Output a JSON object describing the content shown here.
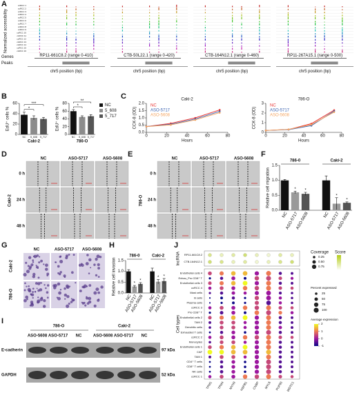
{
  "panel_letters": [
    "A",
    "B",
    "C",
    "D",
    "E",
    "F",
    "G",
    "H",
    "I",
    "J"
  ],
  "panel_a": {
    "ylabel": "Normalized accessibility",
    "tracks": [
      "ccRCC 1",
      "ccRCC 2",
      "ccRCC 3",
      "ccRCC 4",
      "ccRCC 5",
      "ccRCC 6",
      "ccRCC 7",
      "ccRCC 8",
      "ccRCC 9",
      "ccRCC 10",
      "ccRCC 11",
      "ccRCC 12",
      "ccRCC 13",
      "ccRCC 14",
      "ccRCC 15",
      "ccRCC 16"
    ],
    "genes_label": "Genes",
    "peaks_label": "Peaks",
    "genes": [
      "RP11-661C8.2 (range 0-410)",
      "CTB-50L22.1 (range 0-420)",
      "CTB-164N12.1 (range 0-460)",
      "RP11-267A15.1 (range 0-500)"
    ],
    "xlabel": "chr5 position (bp)"
  },
  "chart_data": [
    {
      "type": "bar",
      "title": "Caki-2",
      "ylabel": "EdU⁺ cells %",
      "categories": [
        "NC",
        "5_608",
        "5_717"
      ],
      "values": [
        38,
        32,
        30
      ],
      "errors": [
        5,
        4,
        3
      ],
      "colors": [
        "#111111",
        "#8c8c8c",
        "#555555"
      ],
      "ylim": [
        0,
        60
      ],
      "yticks": [
        0,
        20,
        40,
        60
      ],
      "annotations": [
        "*",
        "***"
      ]
    },
    {
      "type": "bar",
      "title": "786-O",
      "ylabel": "EdU⁺ cells %",
      "categories": [
        "NC",
        "5_608",
        "5_717"
      ],
      "values": [
        60,
        45,
        47
      ],
      "errors": [
        4,
        3,
        4
      ],
      "colors": [
        "#111111",
        "#8c8c8c",
        "#555555"
      ],
      "ylim": [
        0,
        80
      ],
      "yticks": [
        0,
        20,
        40,
        60,
        80
      ],
      "annotations": [
        "*",
        "**"
      ],
      "legend": [
        "NC",
        "5_608",
        "5_717"
      ]
    },
    {
      "type": "line",
      "title": "Caki-2",
      "ylabel": "CCK-8 (OD)",
      "xlabel": "Hours",
      "x": [
        0,
        24,
        48,
        72
      ],
      "xlim": [
        0,
        80
      ],
      "xticks": [
        0,
        20,
        40,
        60,
        80
      ],
      "ylim": [
        0,
        2
      ],
      "yticks": [
        {
          "value": 0,
          "label": "0.0"
        },
        0.5,
        {
          "value": 1,
          "label": "1.0"
        },
        1.5,
        {
          "value": 2,
          "label": "2.0"
        }
      ],
      "series": [
        {
          "name": "NC",
          "color": "#e8312f",
          "values": [
            0.4,
            0.62,
            1.0,
            1.55
          ]
        },
        {
          "name": "ASO-5717",
          "color": "#3a62b0",
          "values": [
            0.4,
            0.56,
            0.92,
            1.45
          ]
        },
        {
          "name": "ASO-5608",
          "color": "#f4a460",
          "values": [
            0.4,
            0.52,
            0.86,
            1.36
          ]
        }
      ]
    },
    {
      "type": "line",
      "title": "786-O",
      "ylabel": "CCK-8 (OD)",
      "xlabel": "Hours",
      "x": [
        0,
        24,
        48,
        72
      ],
      "xlim": [
        0,
        80
      ],
      "xticks": [
        0,
        20,
        40,
        60,
        80
      ],
      "ylim": [
        0,
        3
      ],
      "yticks": [
        0,
        1,
        2,
        3
      ],
      "series": [
        {
          "name": "NC",
          "color": "#e8312f",
          "values": [
            0.2,
            0.3,
            0.9,
            2.3
          ]
        },
        {
          "name": "ASO-5717",
          "color": "#3a62b0",
          "values": [
            0.2,
            0.28,
            0.7,
            2.2
          ]
        },
        {
          "name": "ASO-5608",
          "color": "#f4a460",
          "values": [
            0.2,
            0.3,
            0.8,
            2.1
          ]
        }
      ]
    },
    {
      "type": "groupbar",
      "ylabel": "Relative cell migration",
      "ylim": [
        0,
        1.5
      ],
      "yticks": [
        {
          "value": 0,
          "label": "0.0"
        },
        0.5,
        {
          "value": 1,
          "label": "1.0"
        },
        1.5
      ],
      "colors": [
        "#111111",
        "#9a9a9a",
        "#555555"
      ],
      "groups": [
        {
          "name": "786-0",
          "categories": [
            "NC",
            "ASO-5717",
            "ASO-5608"
          ],
          "values": [
            1.0,
            0.6,
            0.55
          ],
          "errors": [
            0.03,
            0.04,
            0.05
          ],
          "marks": [
            "*",
            "*"
          ]
        },
        {
          "name": "Caki-2",
          "categories": [
            "NC",
            "ASO-5717",
            "ASO-5608"
          ],
          "values": [
            1.0,
            0.22,
            0.25
          ],
          "errors": [
            0.15,
            0.2,
            0.03
          ],
          "marks": [
            "*",
            "*"
          ]
        }
      ]
    },
    {
      "type": "groupbar",
      "ylabel": "Relative cell invasion",
      "ylim": [
        0,
        1.5
      ],
      "yticks": [
        {
          "value": 0,
          "label": "0.0"
        },
        0.5,
        {
          "value": 1,
          "label": "1.0"
        },
        1.5
      ],
      "colors": [
        "#111111",
        "#9a9a9a",
        "#555555"
      ],
      "groups": [
        {
          "name": "786-0",
          "categories": [
            "NC",
            "ASO-5717",
            "ASO-5608"
          ],
          "values": [
            1.0,
            0.3,
            0.42
          ],
          "errors": [
            0.08,
            0.05,
            0.06
          ],
          "marks": [
            "*",
            "*"
          ]
        },
        {
          "name": "Caki-2",
          "categories": [
            "NC",
            "ASO-5717",
            "ASO-5608"
          ],
          "values": [
            1.0,
            0.52,
            0.55
          ],
          "errors": [
            0.15,
            0.1,
            0.12
          ],
          "marks": [
            "*",
            "*"
          ]
        }
      ]
    }
  ],
  "scratch": {
    "columns": [
      "NC",
      "ASO-5717",
      "ASO-5608"
    ],
    "rows": [
      "0 h",
      "24 h",
      "48 h"
    ],
    "cells": [
      "Caki-2",
      "786-O"
    ]
  },
  "invasion": {
    "columns": [
      "NC",
      "ASO-5717",
      "ASO-5608"
    ],
    "rows": [
      "Caki-2",
      "786-O"
    ]
  },
  "western": {
    "cells": [
      "786-O",
      "Caki-2"
    ],
    "lanes": [
      "ASO-5608",
      "ASO-5717",
      "NC"
    ],
    "proteins": [
      {
        "name": "E-cadherin",
        "size": "97 kDa"
      },
      {
        "name": "GAPDH",
        "size": "52 kDa"
      }
    ]
  },
  "dotplot": {
    "genes": [
      "TPM1",
      "TPM4",
      "MYH9",
      "HSPB1",
      "CNBP",
      "MYL6",
      "PUF60",
      "WDTC1"
    ],
    "lnc_label": "lncRNA",
    "cell_label": "Cell types",
    "lnc_rows": [
      "RP11-661C8.2",
      "CTB-164N12.1"
    ],
    "coverage": [
      [
        0.5,
        0.5,
        0.5,
        0.5,
        0.5,
        0.5,
        0.5,
        0.5
      ],
      [
        0.5,
        0.5,
        0.5,
        0.5,
        0.5,
        0.5,
        0.5,
        0.5
      ]
    ],
    "score": [
      [
        0.5,
        0.3,
        0.4,
        0.6,
        0.3,
        0.2,
        0.4,
        0.3
      ],
      [
        0.6,
        0.5,
        0.3,
        0.4,
        0.2,
        0.3,
        0.5,
        0.6
      ]
    ],
    "cell_rows": [
      "Endothelial cells 4",
      "Exhau_Pro CD8⁺ T",
      "Endothelial cells 3",
      "ccRCC 4",
      "Mast cells",
      "B cells",
      "Plasma cells",
      "ccRCC 3",
      "Pro CD8⁺ T",
      "Endothelial cells 2",
      "TAM 2",
      "Dendritic cells",
      "Exhausted T cells",
      "ccRCC 2",
      "Monocytes",
      "Endothelial cells 1",
      "CAF",
      "TAM 1",
      "CD4⁺ T cells",
      "CD8⁺ T cells",
      "NK cells",
      "ccRCC 1"
    ],
    "percent": [
      [
        60,
        70,
        80,
        85,
        75,
        95,
        40,
        30
      ],
      [
        20,
        40,
        60,
        30,
        80,
        95,
        50,
        35
      ],
      [
        50,
        70,
        80,
        90,
        75,
        95,
        40,
        30
      ],
      [
        40,
        60,
        60,
        80,
        80,
        95,
        50,
        40
      ],
      [
        20,
        40,
        50,
        40,
        70,
        90,
        35,
        25
      ],
      [
        10,
        30,
        40,
        20,
        75,
        90,
        40,
        25
      ],
      [
        10,
        20,
        30,
        20,
        70,
        85,
        40,
        25
      ],
      [
        40,
        60,
        60,
        80,
        80,
        95,
        50,
        40
      ],
      [
        20,
        50,
        60,
        30,
        85,
        95,
        55,
        40
      ],
      [
        50,
        70,
        80,
        90,
        75,
        95,
        40,
        30
      ],
      [
        30,
        60,
        60,
        40,
        75,
        95,
        40,
        30
      ],
      [
        25,
        55,
        60,
        40,
        75,
        95,
        45,
        30
      ],
      [
        15,
        40,
        55,
        25,
        75,
        95,
        40,
        30
      ],
      [
        40,
        60,
        60,
        80,
        80,
        95,
        50,
        40
      ],
      [
        25,
        55,
        60,
        40,
        70,
        95,
        40,
        30
      ],
      [
        55,
        75,
        80,
        90,
        75,
        95,
        40,
        30
      ],
      [
        90,
        85,
        85,
        90,
        75,
        98,
        40,
        30
      ],
      [
        30,
        60,
        60,
        40,
        75,
        95,
        40,
        30
      ],
      [
        15,
        40,
        55,
        25,
        75,
        95,
        40,
        30
      ],
      [
        15,
        40,
        55,
        25,
        75,
        95,
        40,
        30
      ],
      [
        15,
        45,
        55,
        25,
        75,
        95,
        40,
        30
      ],
      [
        40,
        60,
        60,
        80,
        80,
        95,
        50,
        40
      ]
    ],
    "expression": [
      [
        0.5,
        1,
        1.5,
        1.5,
        0,
        1,
        -0.5,
        -0.5
      ],
      [
        -1,
        -0.5,
        0,
        -1,
        0.5,
        0.5,
        0.5,
        0
      ],
      [
        0.5,
        1,
        1.5,
        2,
        0,
        1,
        -0.5,
        -0.5
      ],
      [
        0,
        0.5,
        0,
        1,
        0.5,
        1,
        0.5,
        0.5
      ],
      [
        -0.5,
        -0.5,
        0,
        0,
        0,
        0,
        -0.5,
        -0.5
      ],
      [
        -1,
        -1,
        -0.5,
        -1,
        0.5,
        0,
        0,
        -0.5
      ],
      [
        -1,
        -1,
        -1,
        -1,
        0.5,
        -0.5,
        0,
        -0.5
      ],
      [
        0,
        0.5,
        0,
        1,
        0.5,
        1,
        0.5,
        0.5
      ],
      [
        -1,
        -0.5,
        0,
        -1,
        1,
        0.5,
        1,
        0
      ],
      [
        0.5,
        1,
        1.5,
        2,
        0,
        1,
        -0.5,
        -0.5
      ],
      [
        -0.5,
        0.5,
        0.5,
        0,
        0,
        1,
        -0.5,
        -0.5
      ],
      [
        -0.5,
        0.5,
        0.5,
        0,
        0,
        1,
        0,
        -0.5
      ],
      [
        -1,
        -0.5,
        0,
        -1,
        0,
        0.5,
        -0.5,
        -0.5
      ],
      [
        0,
        0.5,
        0,
        1,
        0.5,
        1,
        0.5,
        0.5
      ],
      [
        -0.5,
        0.5,
        0.5,
        0,
        0,
        1,
        -0.5,
        -0.5
      ],
      [
        0.5,
        1,
        1.5,
        2,
        0,
        1,
        -0.5,
        -0.5
      ],
      [
        2,
        2,
        1.5,
        1.5,
        0,
        1.5,
        -0.5,
        -0.5
      ],
      [
        -0.5,
        0.5,
        0.5,
        0,
        0,
        1,
        -0.5,
        -0.5
      ],
      [
        -1,
        -0.5,
        0,
        -1,
        0,
        0.5,
        -0.5,
        -0.5
      ],
      [
        -1,
        -0.5,
        0,
        -1,
        0,
        0.5,
        -0.5,
        -0.5
      ],
      [
        -1,
        -0.5,
        0,
        -1,
        0,
        0.5,
        -0.5,
        -0.5
      ],
      [
        0,
        0.5,
        0,
        1,
        0.5,
        1,
        0.5,
        0.5
      ]
    ],
    "legend": {
      "coverage_title": "Coverage",
      "coverage_ticks": [
        0.25,
        {
          "value": 0.5,
          "label": "0.50"
        },
        0.75
      ],
      "score_title": "Score",
      "percent_title": "Percent expressed",
      "percent_ticks": [
        25,
        50,
        75,
        100
      ],
      "expression_title": "Average expression",
      "expression_ticks": [
        2,
        1,
        0,
        -1
      ]
    }
  }
}
